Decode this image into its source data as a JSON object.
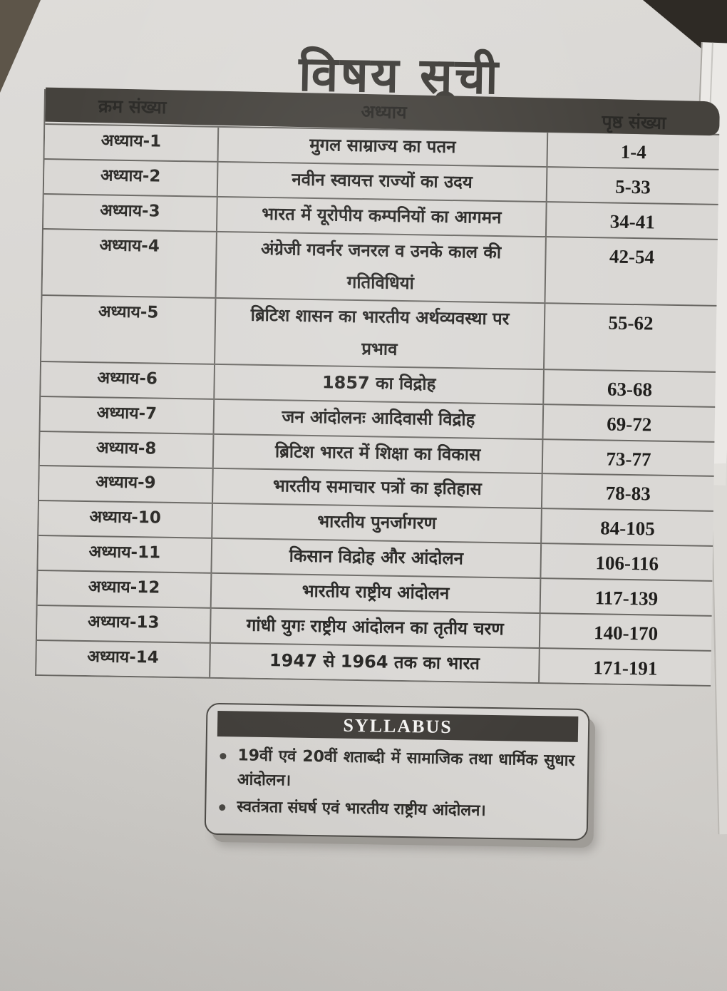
{
  "page_title": "विषय सूची",
  "table": {
    "headers": [
      "क्रम संख्या",
      "अध्याय",
      "पृष्ठ संख्या"
    ],
    "rows": [
      {
        "chapter": "अध्याय-1",
        "title": "मुगल साम्राज्य का पतन",
        "pages": "1-4"
      },
      {
        "chapter": "अध्याय-2",
        "title": "नवीन स्वायत्त राज्यों का उदय",
        "pages": "5-33"
      },
      {
        "chapter": "अध्याय-3",
        "title": "भारत में यूरोपीय कम्पनियों का आगमन",
        "pages": "34-41"
      },
      {
        "chapter": "अध्याय-4",
        "title": "अंग्रेजी गवर्नर जनरल व उनके काल की\nगतिविधियां",
        "pages": "42-54"
      },
      {
        "chapter": "अध्याय-5",
        "title": "ब्रिटिश शासन का भारतीय अर्थव्यवस्था पर\nप्रभाव",
        "pages": "55-62"
      },
      {
        "chapter": "अध्याय-6",
        "title": "1857 का विद्रोह",
        "pages": "63-68"
      },
      {
        "chapter": "अध्याय-7",
        "title": "जन आंदोलनः आदिवासी विद्रोह",
        "pages": "69-72"
      },
      {
        "chapter": "अध्याय-8",
        "title": "ब्रिटिश भारत में शिक्षा का विकास",
        "pages": "73-77"
      },
      {
        "chapter": "अध्याय-9",
        "title": "भारतीय समाचार पत्रों का इतिहास",
        "pages": "78-83"
      },
      {
        "chapter": "अध्याय-10",
        "title": "भारतीय पुनर्जागरण",
        "pages": "84-105"
      },
      {
        "chapter": "अध्याय-11",
        "title": "किसान विद्रोह और आंदोलन",
        "pages": "106-116"
      },
      {
        "chapter": "अध्याय-12",
        "title": "भारतीय राष्ट्रीय आंदोलन",
        "pages": "117-139"
      },
      {
        "chapter": "अध्याय-13",
        "title": "गांधी युगः राष्ट्रीय आंदोलन का तृतीय चरण",
        "pages": "140-170"
      },
      {
        "chapter": "अध्याय-14",
        "title": "1947 से 1964 तक का भारत",
        "pages": "171-191"
      }
    ]
  },
  "syllabus": {
    "title": "SYLLABUS",
    "items": [
      "19वीं एवं 20वीं शताब्दी में सामाजिक तथा धार्मिक सुधार आंदोलन।",
      "स्वतंत्रता संघर्ष एवं भारतीय राष्ट्रीय आंदोलन।"
    ]
  },
  "colors": {
    "paper": "#d6d4d1",
    "cell": "#dad8d5",
    "header_bar": "#45423d",
    "border": "#6a6864",
    "text_dark": "#2a2926",
    "numbers": "#1f1e1c",
    "shadow": "#a19e99"
  }
}
